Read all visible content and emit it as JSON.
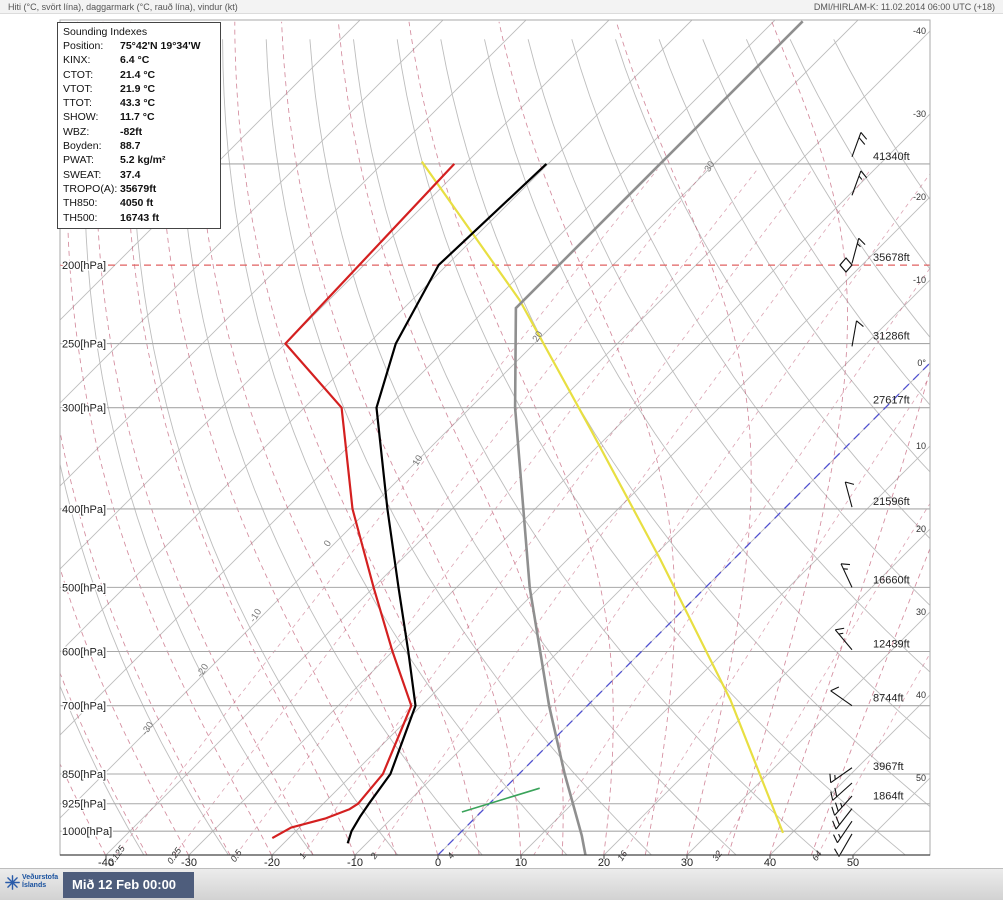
{
  "header": {
    "left": "Hiti (°C, svört lína), daggarmark (°C, rauð lína), vindur (kt)",
    "right": "DMI/HIRLAM-K: 11.02.2014 06:00 UTC (+18)"
  },
  "indexes": {
    "title": "Sounding Indexes",
    "rows": [
      {
        "label": "Position:",
        "value": "75°42'N 19°34'W"
      },
      {
        "label": "KINX:",
        "value": "6.4 °C"
      },
      {
        "label": "CTOT:",
        "value": "21.4 °C"
      },
      {
        "label": "VTOT:",
        "value": "21.9 °C"
      },
      {
        "label": "TTOT:",
        "value": "43.3 °C"
      },
      {
        "label": "SHOW:",
        "value": "11.7 °C"
      },
      {
        "label": "WBZ:",
        "value": "-82ft"
      },
      {
        "label": "Boyden:",
        "value": "88.7"
      },
      {
        "label": "PWAT:",
        "value": "5.2 kg/m²"
      },
      {
        "label": "SWEAT:",
        "value": "37.4"
      },
      {
        "label": "TROPO(A):",
        "value": "35679ft"
      },
      {
        "label": "TH850:",
        "value": "4050 ft"
      },
      {
        "label": "TH500:",
        "value": "16743 ft"
      }
    ]
  },
  "footer": {
    "org_line1": "Veðurstofa",
    "org_line2": "Íslands",
    "timestamp": "Mið 12 Feb 00:00"
  },
  "chart_data": {
    "type": "skewt-logp-sounding",
    "pressure_axis": {
      "unit": "hPa",
      "range": [
        100,
        1050
      ],
      "labeled_levels": [
        200,
        250,
        300,
        400,
        500,
        600,
        700,
        850,
        925,
        1000
      ],
      "labels": [
        "200[hPa]",
        "250[hPa]",
        "300[hPa]",
        "400[hPa]",
        "500[hPa]",
        "600[hPa]",
        "700[hPa]",
        "850[hPa]",
        "925[hPa]",
        "1000[hPa]"
      ],
      "minor_gridlines": [
        150
      ]
    },
    "temp_axis": {
      "unit": "°C",
      "bottom_ticks": [
        -40,
        -30,
        -20,
        -10,
        0,
        10,
        20,
        30,
        40,
        50
      ],
      "right_edge_labels": [
        "-40",
        "-30",
        "-20",
        "-10",
        "0°",
        "10",
        "20",
        "30",
        "40",
        "50"
      ]
    },
    "altitude_labels": [
      {
        "p": 150,
        "text": "41340ft"
      },
      {
        "p": 200,
        "text": "35678ft"
      },
      {
        "p": 250,
        "text": "31286ft"
      },
      {
        "p": 300,
        "text": "27617ft"
      },
      {
        "p": 400,
        "text": "21596ft"
      },
      {
        "p": 500,
        "text": "16660ft"
      },
      {
        "p": 600,
        "text": "12439ft"
      },
      {
        "p": 700,
        "text": "8744ft"
      },
      {
        "p": 850,
        "text": "3967ft"
      },
      {
        "p": 925,
        "text": "1864ft"
      }
    ],
    "grid": {
      "isotherms_c": {
        "min": -110,
        "max": 50,
        "step": 10
      },
      "dry_adiabats_c": {
        "min": -40,
        "max": 150,
        "step": 10
      },
      "moist_adiabats_start_c": {
        "min": -40,
        "max": 45,
        "step": 5
      },
      "mixing_ratio_gkg": [
        0.125,
        0.25,
        0.5,
        1,
        2,
        4,
        8,
        16,
        32,
        64
      ],
      "mixing_ratio_labeled": [
        0.125,
        0.25,
        0.5,
        1,
        2,
        4,
        16,
        32,
        64
      ],
      "dry_adiabat_label_values": [
        -30,
        -20,
        -10,
        0,
        10,
        20,
        30
      ]
    },
    "tropopause": {
      "p_hpa": 200,
      "altitude_text": "35678ft",
      "marker": "diamond",
      "line_style": "red-dashed"
    },
    "freezing_isotherm_c": 0,
    "profiles": {
      "temperature_c_by_hpa": [
        [
          1035,
          -12.3
        ],
        [
          1000,
          -13.3
        ],
        [
          960,
          -14.0
        ],
        [
          925,
          -14.5
        ],
        [
          850,
          -15.5
        ],
        [
          700,
          -20.7
        ],
        [
          600,
          -28.1
        ],
        [
          500,
          -37.0
        ],
        [
          400,
          -47.8
        ],
        [
          300,
          -61.3
        ],
        [
          250,
          -66.7
        ],
        [
          200,
          -71.0
        ],
        [
          150,
          -70.2
        ]
      ],
      "dewpoint_c_by_hpa": [
        [
          1020,
          -22.0
        ],
        [
          990,
          -21.0
        ],
        [
          965,
          -18.0
        ],
        [
          940,
          -16.2
        ],
        [
          925,
          -15.8
        ],
        [
          850,
          -16.4
        ],
        [
          700,
          -21.2
        ],
        [
          600,
          -30.0
        ],
        [
          500,
          -40.0
        ],
        [
          400,
          -52.0
        ],
        [
          300,
          -65.5
        ],
        [
          250,
          -80.0
        ],
        [
          150,
          -81.3
        ]
      ],
      "isa_reference_c_by_hpa": [
        [
          1071,
          17.8
        ],
        [
          1013,
          15.0
        ],
        [
          850,
          5.5
        ],
        [
          700,
          -4.6
        ],
        [
          500,
          -21.2
        ],
        [
          300,
          -44.6
        ],
        [
          226,
          -56.5
        ],
        [
          100,
          -56.5
        ]
      ],
      "yellow_reference_c_by_hpa": [
        [
          1005,
          38.9
        ],
        [
          850,
          29.0
        ],
        [
          688,
          16.5
        ],
        [
          462,
          -8.8
        ],
        [
          319,
          -32.9
        ],
        [
          221,
          -57.0
        ],
        [
          149,
          -85.5
        ]
      ],
      "green_segment_c_by_hpa": [
        [
          947,
          -2.3
        ],
        [
          885,
          4.2
        ]
      ]
    },
    "winds_kt": [
      {
        "p": 147,
        "dir": 20,
        "spd": 20
      },
      {
        "p": 164,
        "dir": 20,
        "spd": 15
      },
      {
        "p": 199,
        "dir": 15,
        "spd": 15
      },
      {
        "p": 252,
        "dir": 10,
        "spd": 10
      },
      {
        "p": 398,
        "dir": 345,
        "spd": 10
      },
      {
        "p": 500,
        "dir": 335,
        "spd": 15
      },
      {
        "p": 597,
        "dir": 320,
        "spd": 15
      },
      {
        "p": 700,
        "dir": 305,
        "spd": 10
      },
      {
        "p": 835,
        "dir": 235,
        "spd": 15
      },
      {
        "p": 872,
        "dir": 228,
        "spd": 20
      },
      {
        "p": 905,
        "dir": 222,
        "spd": 25
      },
      {
        "p": 938,
        "dir": 218,
        "spd": 20
      },
      {
        "p": 972,
        "dir": 214,
        "spd": 15
      },
      {
        "p": 1008,
        "dir": 210,
        "spd": 10
      }
    ],
    "colors": {
      "temperature": "#000000",
      "dewpoint": "#d42020",
      "isa": "#8f8f8f",
      "yellow": "#e8df42",
      "freezing": "#5050d0",
      "moist": "#c05a74",
      "grid": "#bdbdbd",
      "pressure_grid": "#a8a8a8",
      "tropopause": "#e06060",
      "green": "#3aa35a"
    }
  }
}
